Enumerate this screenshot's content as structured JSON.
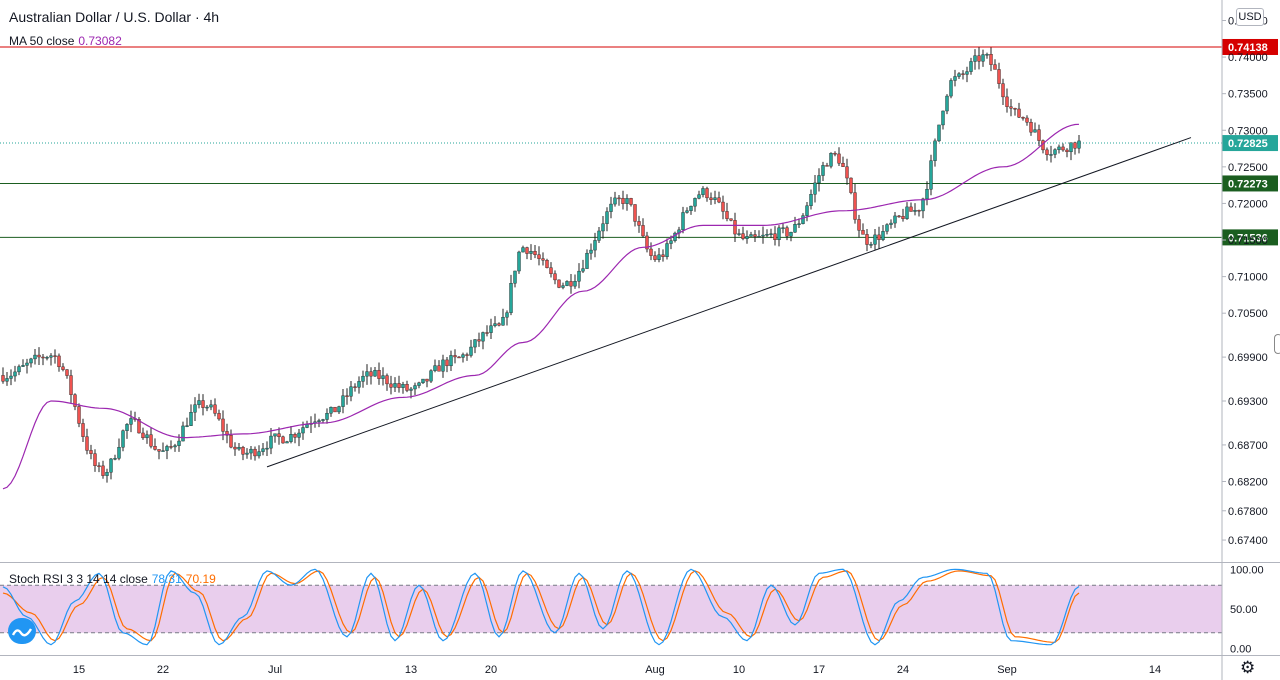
{
  "header": {
    "title": "Australian Dollar / U.S. Dollar · 4h",
    "ma_label": "MA 50 close",
    "ma_value": "0.73082",
    "currency": "USD"
  },
  "stoch": {
    "label": "Stoch RSI 3 3 14 14 close",
    "k_value": "78.31",
    "d_value": "70.19"
  },
  "colors": {
    "up_candle": "#26a69a",
    "down_candle": "#ef5350",
    "ma": "#9c27b0",
    "resistance": "#d50000",
    "support": "#1b5e20",
    "trendline": "#131722",
    "stoch_k": "#2196f3",
    "stoch_d": "#ff6d00",
    "stoch_band": "#e1bee7"
  },
  "chart_data": {
    "type": "candlestick",
    "y_range": [
      0.671,
      0.7478
    ],
    "y_ticks": [
      "0.74500",
      "0.74000",
      "0.73500",
      "0.73000",
      "0.72500",
      "0.72000",
      "0.71500",
      "0.71000",
      "0.70500",
      "0.69900",
      "0.69300",
      "0.68700",
      "0.68200",
      "0.67800",
      "0.67400"
    ],
    "x_ticks": [
      "15",
      "22",
      "Jul",
      "13",
      "20",
      "Aug",
      "10",
      "17",
      "24",
      "Sep",
      "14"
    ],
    "anchors": [
      {
        "bar": 0,
        "price": 0.6965
      },
      {
        "bar": 12,
        "price": 0.6993
      },
      {
        "bar": 25,
        "price": 0.6832
      },
      {
        "bar": 32,
        "price": 0.69
      },
      {
        "bar": 40,
        "price": 0.686
      },
      {
        "bar": 50,
        "price": 0.6925
      },
      {
        "bar": 60,
        "price": 0.6858
      },
      {
        "bar": 70,
        "price": 0.688
      },
      {
        "bar": 80,
        "price": 0.691
      },
      {
        "bar": 92,
        "price": 0.6965
      },
      {
        "bar": 102,
        "price": 0.6945
      },
      {
        "bar": 112,
        "price": 0.6985
      },
      {
        "bar": 124,
        "price": 0.703
      },
      {
        "bar": 130,
        "price": 0.714
      },
      {
        "bar": 140,
        "price": 0.709
      },
      {
        "bar": 155,
        "price": 0.7205
      },
      {
        "bar": 163,
        "price": 0.7125
      },
      {
        "bar": 175,
        "price": 0.7215
      },
      {
        "bar": 186,
        "price": 0.715
      },
      {
        "bar": 196,
        "price": 0.716
      },
      {
        "bar": 208,
        "price": 0.7265
      },
      {
        "bar": 216,
        "price": 0.715
      },
      {
        "bar": 228,
        "price": 0.719
      },
      {
        "bar": 238,
        "price": 0.737
      },
      {
        "bar": 245,
        "price": 0.74
      },
      {
        "bar": 254,
        "price": 0.732
      },
      {
        "bar": 262,
        "price": 0.7272
      },
      {
        "bar": 269,
        "price": 0.72825
      }
    ],
    "ma_anchors": [
      {
        "bar": 0,
        "price": 0.681
      },
      {
        "bar": 12,
        "price": 0.693
      },
      {
        "bar": 25,
        "price": 0.692
      },
      {
        "bar": 45,
        "price": 0.688
      },
      {
        "bar": 60,
        "price": 0.6885
      },
      {
        "bar": 80,
        "price": 0.69
      },
      {
        "bar": 100,
        "price": 0.6935
      },
      {
        "bar": 118,
        "price": 0.6965
      },
      {
        "bar": 130,
        "price": 0.701
      },
      {
        "bar": 145,
        "price": 0.708
      },
      {
        "bar": 160,
        "price": 0.714
      },
      {
        "bar": 175,
        "price": 0.717
      },
      {
        "bar": 190,
        "price": 0.717
      },
      {
        "bar": 210,
        "price": 0.719
      },
      {
        "bar": 230,
        "price": 0.7205
      },
      {
        "bar": 250,
        "price": 0.725
      },
      {
        "bar": 269,
        "price": 0.73082
      }
    ],
    "horizontal_levels": [
      {
        "price": 0.74138,
        "label": "0.74138",
        "color": "#d50000"
      },
      {
        "price": 0.72273,
        "label": "0.72273",
        "color": "#1b5e20"
      },
      {
        "price": 0.71536,
        "label": "0.71536",
        "color": "#1b5e20"
      }
    ],
    "current_price": {
      "price": 0.72825,
      "label": "0.72825"
    },
    "trendline": {
      "from_bar": 66,
      "from_price": 0.684,
      "to_bar": 297,
      "to_price": 0.729
    },
    "stoch_range": [
      0,
      100
    ],
    "stoch_ticks": [
      "100.00",
      "50.00",
      "0.00"
    ],
    "stoch_band": [
      20,
      80
    ],
    "stoch_k_anchors": [
      {
        "bar": 0,
        "v": 78
      },
      {
        "bar": 6,
        "v": 40
      },
      {
        "bar": 12,
        "v": 5
      },
      {
        "bar": 18,
        "v": 60
      },
      {
        "bar": 24,
        "v": 95
      },
      {
        "bar": 30,
        "v": 20
      },
      {
        "bar": 36,
        "v": 5
      },
      {
        "bar": 42,
        "v": 98
      },
      {
        "bar": 48,
        "v": 70
      },
      {
        "bar": 54,
        "v": 5
      },
      {
        "bar": 60,
        "v": 40
      },
      {
        "bar": 66,
        "v": 98
      },
      {
        "bar": 72,
        "v": 80
      },
      {
        "bar": 78,
        "v": 100
      },
      {
        "bar": 86,
        "v": 15
      },
      {
        "bar": 92,
        "v": 95
      },
      {
        "bar": 98,
        "v": 10
      },
      {
        "bar": 104,
        "v": 80
      },
      {
        "bar": 110,
        "v": 10
      },
      {
        "bar": 118,
        "v": 95
      },
      {
        "bar": 124,
        "v": 15
      },
      {
        "bar": 130,
        "v": 98
      },
      {
        "bar": 138,
        "v": 20
      },
      {
        "bar": 144,
        "v": 95
      },
      {
        "bar": 150,
        "v": 25
      },
      {
        "bar": 156,
        "v": 98
      },
      {
        "bar": 164,
        "v": 5
      },
      {
        "bar": 172,
        "v": 100
      },
      {
        "bar": 180,
        "v": 40
      },
      {
        "bar": 186,
        "v": 10
      },
      {
        "bar": 192,
        "v": 80
      },
      {
        "bar": 198,
        "v": 30
      },
      {
        "bar": 204,
        "v": 95
      },
      {
        "bar": 210,
        "v": 100
      },
      {
        "bar": 218,
        "v": 5
      },
      {
        "bar": 224,
        "v": 60
      },
      {
        "bar": 230,
        "v": 90
      },
      {
        "bar": 238,
        "v": 100
      },
      {
        "bar": 246,
        "v": 95
      },
      {
        "bar": 252,
        "v": 10
      },
      {
        "bar": 262,
        "v": 5
      },
      {
        "bar": 269,
        "v": 78.31
      }
    ],
    "stoch_d_anchors": [
      {
        "bar": 0,
        "v": 70
      },
      {
        "bar": 7,
        "v": 45
      },
      {
        "bar": 13,
        "v": 10
      },
      {
        "bar": 19,
        "v": 55
      },
      {
        "bar": 25,
        "v": 90
      },
      {
        "bar": 31,
        "v": 25
      },
      {
        "bar": 37,
        "v": 10
      },
      {
        "bar": 43,
        "v": 95
      },
      {
        "bar": 49,
        "v": 72
      },
      {
        "bar": 55,
        "v": 10
      },
      {
        "bar": 61,
        "v": 38
      },
      {
        "bar": 67,
        "v": 95
      },
      {
        "bar": 73,
        "v": 82
      },
      {
        "bar": 79,
        "v": 98
      },
      {
        "bar": 87,
        "v": 20
      },
      {
        "bar": 93,
        "v": 90
      },
      {
        "bar": 99,
        "v": 15
      },
      {
        "bar": 105,
        "v": 75
      },
      {
        "bar": 111,
        "v": 15
      },
      {
        "bar": 119,
        "v": 90
      },
      {
        "bar": 125,
        "v": 20
      },
      {
        "bar": 131,
        "v": 95
      },
      {
        "bar": 139,
        "v": 25
      },
      {
        "bar": 145,
        "v": 90
      },
      {
        "bar": 151,
        "v": 30
      },
      {
        "bar": 157,
        "v": 95
      },
      {
        "bar": 165,
        "v": 10
      },
      {
        "bar": 173,
        "v": 98
      },
      {
        "bar": 181,
        "v": 45
      },
      {
        "bar": 187,
        "v": 15
      },
      {
        "bar": 193,
        "v": 75
      },
      {
        "bar": 199,
        "v": 35
      },
      {
        "bar": 205,
        "v": 90
      },
      {
        "bar": 211,
        "v": 98
      },
      {
        "bar": 219,
        "v": 10
      },
      {
        "bar": 225,
        "v": 55
      },
      {
        "bar": 231,
        "v": 85
      },
      {
        "bar": 239,
        "v": 98
      },
      {
        "bar": 247,
        "v": 92
      },
      {
        "bar": 253,
        "v": 15
      },
      {
        "bar": 263,
        "v": 8
      },
      {
        "bar": 269,
        "v": 70.19
      }
    ]
  }
}
